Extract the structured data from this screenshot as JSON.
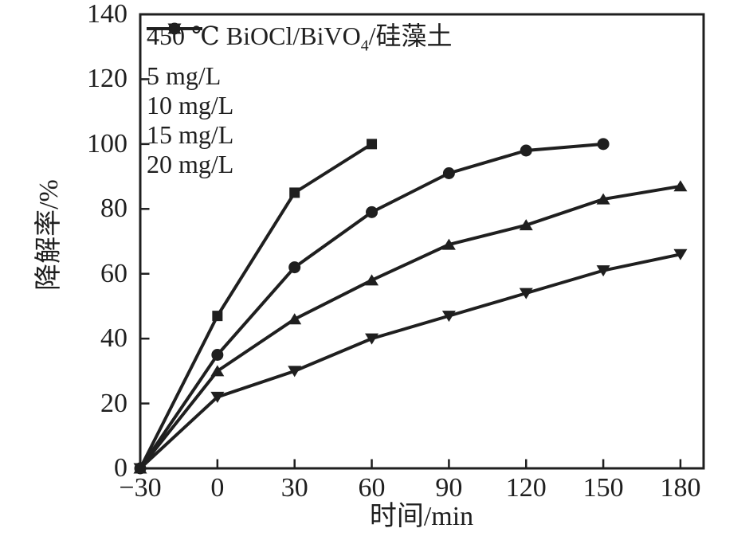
{
  "chart_data": {
    "type": "line",
    "title": "450 ℃ BiOCl/BiVO4/硅藻土",
    "title_parts": {
      "prefix": "450 ℃ BiOCl/BiVO",
      "sub": "4",
      "suffix": "/硅藻土"
    },
    "xlabel": "时间/min",
    "ylabel": "降解率/%",
    "xlim": [
      -30,
      189
    ],
    "ylim": [
      0,
      140
    ],
    "grid": false,
    "legend_position": "top-left-inside",
    "color": "#1f1f1f",
    "background": "#ffffff",
    "x_ticks": [
      {
        "v": -30,
        "label": "−30"
      },
      {
        "v": 0,
        "label": "0"
      },
      {
        "v": 30,
        "label": "30"
      },
      {
        "v": 60,
        "label": "60"
      },
      {
        "v": 90,
        "label": "90"
      },
      {
        "v": 120,
        "label": "120"
      },
      {
        "v": 150,
        "label": "150"
      },
      {
        "v": 180,
        "label": "180"
      }
    ],
    "y_ticks": [
      {
        "v": 0,
        "label": "0"
      },
      {
        "v": 20,
        "label": "20"
      },
      {
        "v": 40,
        "label": "40"
      },
      {
        "v": 60,
        "label": "60"
      },
      {
        "v": 80,
        "label": "80"
      },
      {
        "v": 100,
        "label": "100"
      },
      {
        "v": 120,
        "label": "120"
      },
      {
        "v": 140,
        "label": "140"
      }
    ],
    "series": [
      {
        "name": "5 mg/L",
        "marker": "square",
        "x": [
          -30,
          0,
          30,
          60
        ],
        "y": [
          0,
          47,
          85,
          100
        ]
      },
      {
        "name": "10 mg/L",
        "marker": "circle",
        "x": [
          -30,
          0,
          30,
          60,
          90,
          120,
          150
        ],
        "y": [
          0,
          35,
          62,
          79,
          91,
          98,
          100
        ]
      },
      {
        "name": "15 mg/L",
        "marker": "triangle-up",
        "x": [
          -30,
          0,
          30,
          60,
          90,
          120,
          150,
          180
        ],
        "y": [
          0,
          30,
          46,
          58,
          69,
          75,
          83,
          87
        ]
      },
      {
        "name": "20 mg/L",
        "marker": "triangle-down",
        "x": [
          -30,
          0,
          30,
          60,
          90,
          120,
          150,
          180
        ],
        "y": [
          0,
          22,
          30,
          40,
          47,
          54,
          61,
          66
        ]
      }
    ]
  }
}
